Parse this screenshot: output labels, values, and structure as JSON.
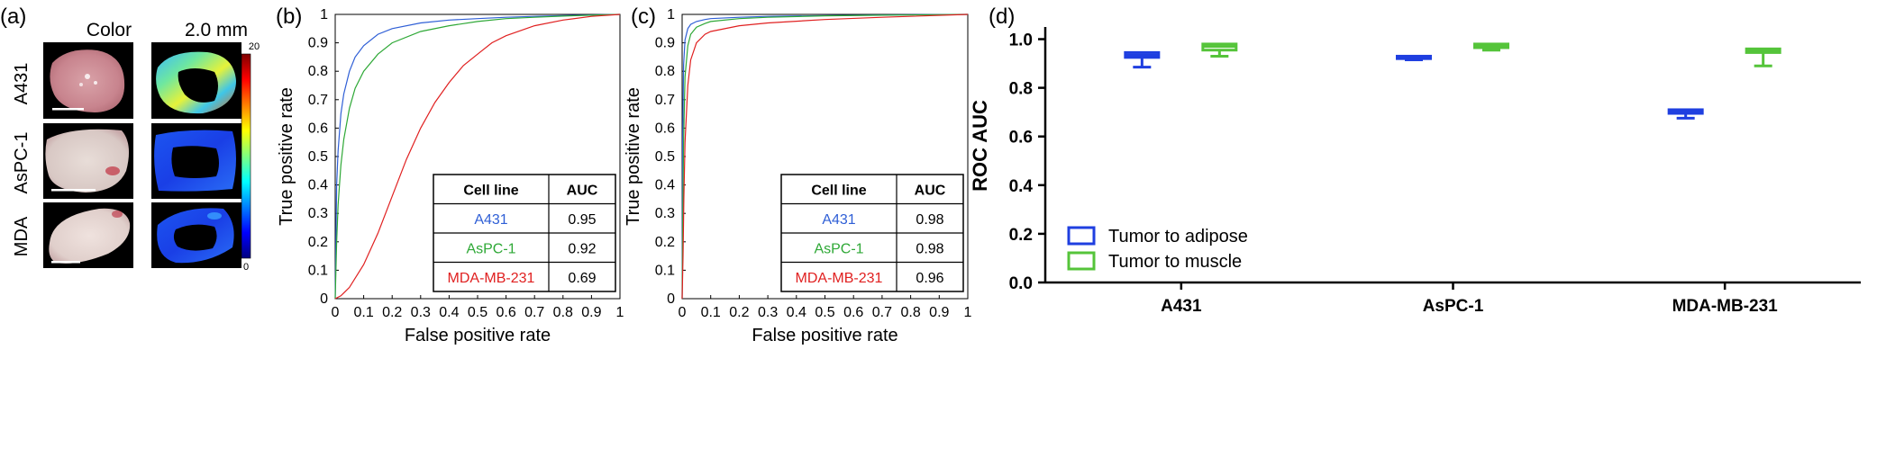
{
  "panel_a": {
    "label": "(a)",
    "col_color": "Color",
    "col_depth": "2.0 mm",
    "rows": [
      "A431",
      "AsPC-1",
      "MDA"
    ],
    "colorbar_max": "20",
    "colorbar_min": "0"
  },
  "chart_data": [
    {
      "panel": "(b)",
      "type": "line",
      "xlabel": "False positive rate",
      "ylabel": "True positive rate",
      "xlim": [
        0,
        1
      ],
      "ylim": [
        0,
        1
      ],
      "xticks": [
        "0",
        "0.1",
        "0.2",
        "0.3",
        "0.4",
        "0.5",
        "0.6",
        "0.7",
        "0.8",
        "0.9",
        "1"
      ],
      "yticks": [
        "0",
        "0.1",
        "0.2",
        "0.3",
        "0.4",
        "0.5",
        "0.6",
        "0.7",
        "0.8",
        "0.9",
        "1"
      ],
      "series": [
        {
          "name": "A431",
          "color": "#2f5fd6",
          "x": [
            0,
            0.005,
            0.01,
            0.02,
            0.03,
            0.05,
            0.07,
            0.1,
            0.15,
            0.2,
            0.3,
            0.4,
            0.5,
            0.6,
            0.7,
            0.8,
            0.9,
            1
          ],
          "y": [
            0,
            0.4,
            0.52,
            0.65,
            0.72,
            0.8,
            0.85,
            0.89,
            0.93,
            0.95,
            0.97,
            0.98,
            0.985,
            0.99,
            0.993,
            0.996,
            0.998,
            1
          ]
        },
        {
          "name": "AsPC-1",
          "color": "#2ea836",
          "x": [
            0,
            0.005,
            0.01,
            0.02,
            0.03,
            0.05,
            0.07,
            0.1,
            0.15,
            0.2,
            0.3,
            0.4,
            0.5,
            0.6,
            0.7,
            0.8,
            0.9,
            1
          ],
          "y": [
            0,
            0.2,
            0.33,
            0.47,
            0.56,
            0.67,
            0.74,
            0.8,
            0.86,
            0.9,
            0.94,
            0.96,
            0.975,
            0.985,
            0.99,
            0.994,
            0.997,
            1
          ]
        },
        {
          "name": "MDA-MB-231",
          "color": "#e02020",
          "x": [
            0,
            0.02,
            0.05,
            0.1,
            0.15,
            0.2,
            0.25,
            0.3,
            0.35,
            0.4,
            0.45,
            0.5,
            0.55,
            0.6,
            0.7,
            0.8,
            0.9,
            1
          ],
          "y": [
            0,
            0.01,
            0.04,
            0.12,
            0.23,
            0.36,
            0.49,
            0.6,
            0.69,
            0.76,
            0.82,
            0.86,
            0.9,
            0.925,
            0.96,
            0.98,
            0.993,
            1
          ]
        }
      ],
      "table": {
        "headers": [
          "Cell line",
          "AUC"
        ],
        "rows": [
          [
            "A431",
            "0.95"
          ],
          [
            "AsPC-1",
            "0.92"
          ],
          [
            "MDA-MB-231",
            "0.69"
          ]
        ]
      }
    },
    {
      "panel": "(c)",
      "type": "line",
      "xlabel": "False positive rate",
      "ylabel": "True positive rate",
      "xlim": [
        0,
        1
      ],
      "ylim": [
        0,
        1
      ],
      "xticks": [
        "0",
        "0.1",
        "0.2",
        "0.3",
        "0.4",
        "0.5",
        "0.6",
        "0.7",
        "0.8",
        "0.9",
        "1"
      ],
      "yticks": [
        "0",
        "0.1",
        "0.2",
        "0.3",
        "0.4",
        "0.5",
        "0.6",
        "0.7",
        "0.8",
        "0.9",
        "1"
      ],
      "series": [
        {
          "name": "A431",
          "color": "#2f5fd6",
          "x": [
            0,
            0.002,
            0.005,
            0.01,
            0.02,
            0.03,
            0.05,
            0.08,
            0.1,
            0.2,
            0.3,
            0.5,
            0.7,
            1
          ],
          "y": [
            0,
            0.55,
            0.82,
            0.91,
            0.95,
            0.965,
            0.975,
            0.982,
            0.985,
            0.99,
            0.993,
            0.996,
            0.998,
            1
          ]
        },
        {
          "name": "AsPC-1",
          "color": "#2ea836",
          "x": [
            0,
            0.002,
            0.005,
            0.01,
            0.02,
            0.03,
            0.05,
            0.08,
            0.1,
            0.2,
            0.3,
            0.5,
            0.7,
            1
          ],
          "y": [
            0,
            0.25,
            0.55,
            0.78,
            0.89,
            0.93,
            0.955,
            0.968,
            0.975,
            0.985,
            0.99,
            0.995,
            0.997,
            1
          ]
        },
        {
          "name": "MDA-MB-231",
          "color": "#e02020",
          "x": [
            0,
            0.003,
            0.006,
            0.01,
            0.02,
            0.03,
            0.05,
            0.08,
            0.1,
            0.2,
            0.3,
            0.5,
            0.7,
            1
          ],
          "y": [
            0,
            0.15,
            0.35,
            0.55,
            0.75,
            0.84,
            0.9,
            0.93,
            0.94,
            0.96,
            0.97,
            0.982,
            0.99,
            1
          ]
        }
      ],
      "table": {
        "headers": [
          "Cell line",
          "AUC"
        ],
        "rows": [
          [
            "A431",
            "0.98"
          ],
          [
            "AsPC-1",
            "0.98"
          ],
          [
            "MDA-MB-231",
            "0.96"
          ]
        ]
      }
    },
    {
      "panel": "(d)",
      "type": "box",
      "ylabel": "ROC AUC",
      "ylim": [
        0,
        1.05
      ],
      "yticks": [
        "0.0",
        "0.2",
        "0.4",
        "0.6",
        "0.8",
        "1.0"
      ],
      "categories": [
        "A431",
        "AsPC-1",
        "MDA-MB-231"
      ],
      "series": [
        {
          "name": "Tumor to adipose",
          "color": "#1f3fe0",
          "boxes": [
            {
              "min": 0.885,
              "q1": 0.925,
              "median": 0.935,
              "q3": 0.945,
              "max": 0.945
            },
            {
              "min": 0.915,
              "q1": 0.92,
              "median": 0.925,
              "q3": 0.93,
              "max": 0.93
            },
            {
              "min": 0.675,
              "q1": 0.695,
              "median": 0.7,
              "q3": 0.71,
              "max": 0.71
            }
          ]
        },
        {
          "name": "Tumor to muscle",
          "color": "#55c43a",
          "boxes": [
            {
              "min": 0.93,
              "q1": 0.955,
              "median": 0.97,
              "q3": 0.98,
              "max": 0.98
            },
            {
              "min": 0.955,
              "q1": 0.965,
              "median": 0.975,
              "q3": 0.98,
              "max": 0.98
            },
            {
              "min": 0.89,
              "q1": 0.945,
              "median": 0.955,
              "q3": 0.96,
              "max": 0.96
            }
          ]
        }
      ],
      "legend": [
        "Tumor to adipose",
        "Tumor to muscle"
      ]
    }
  ]
}
